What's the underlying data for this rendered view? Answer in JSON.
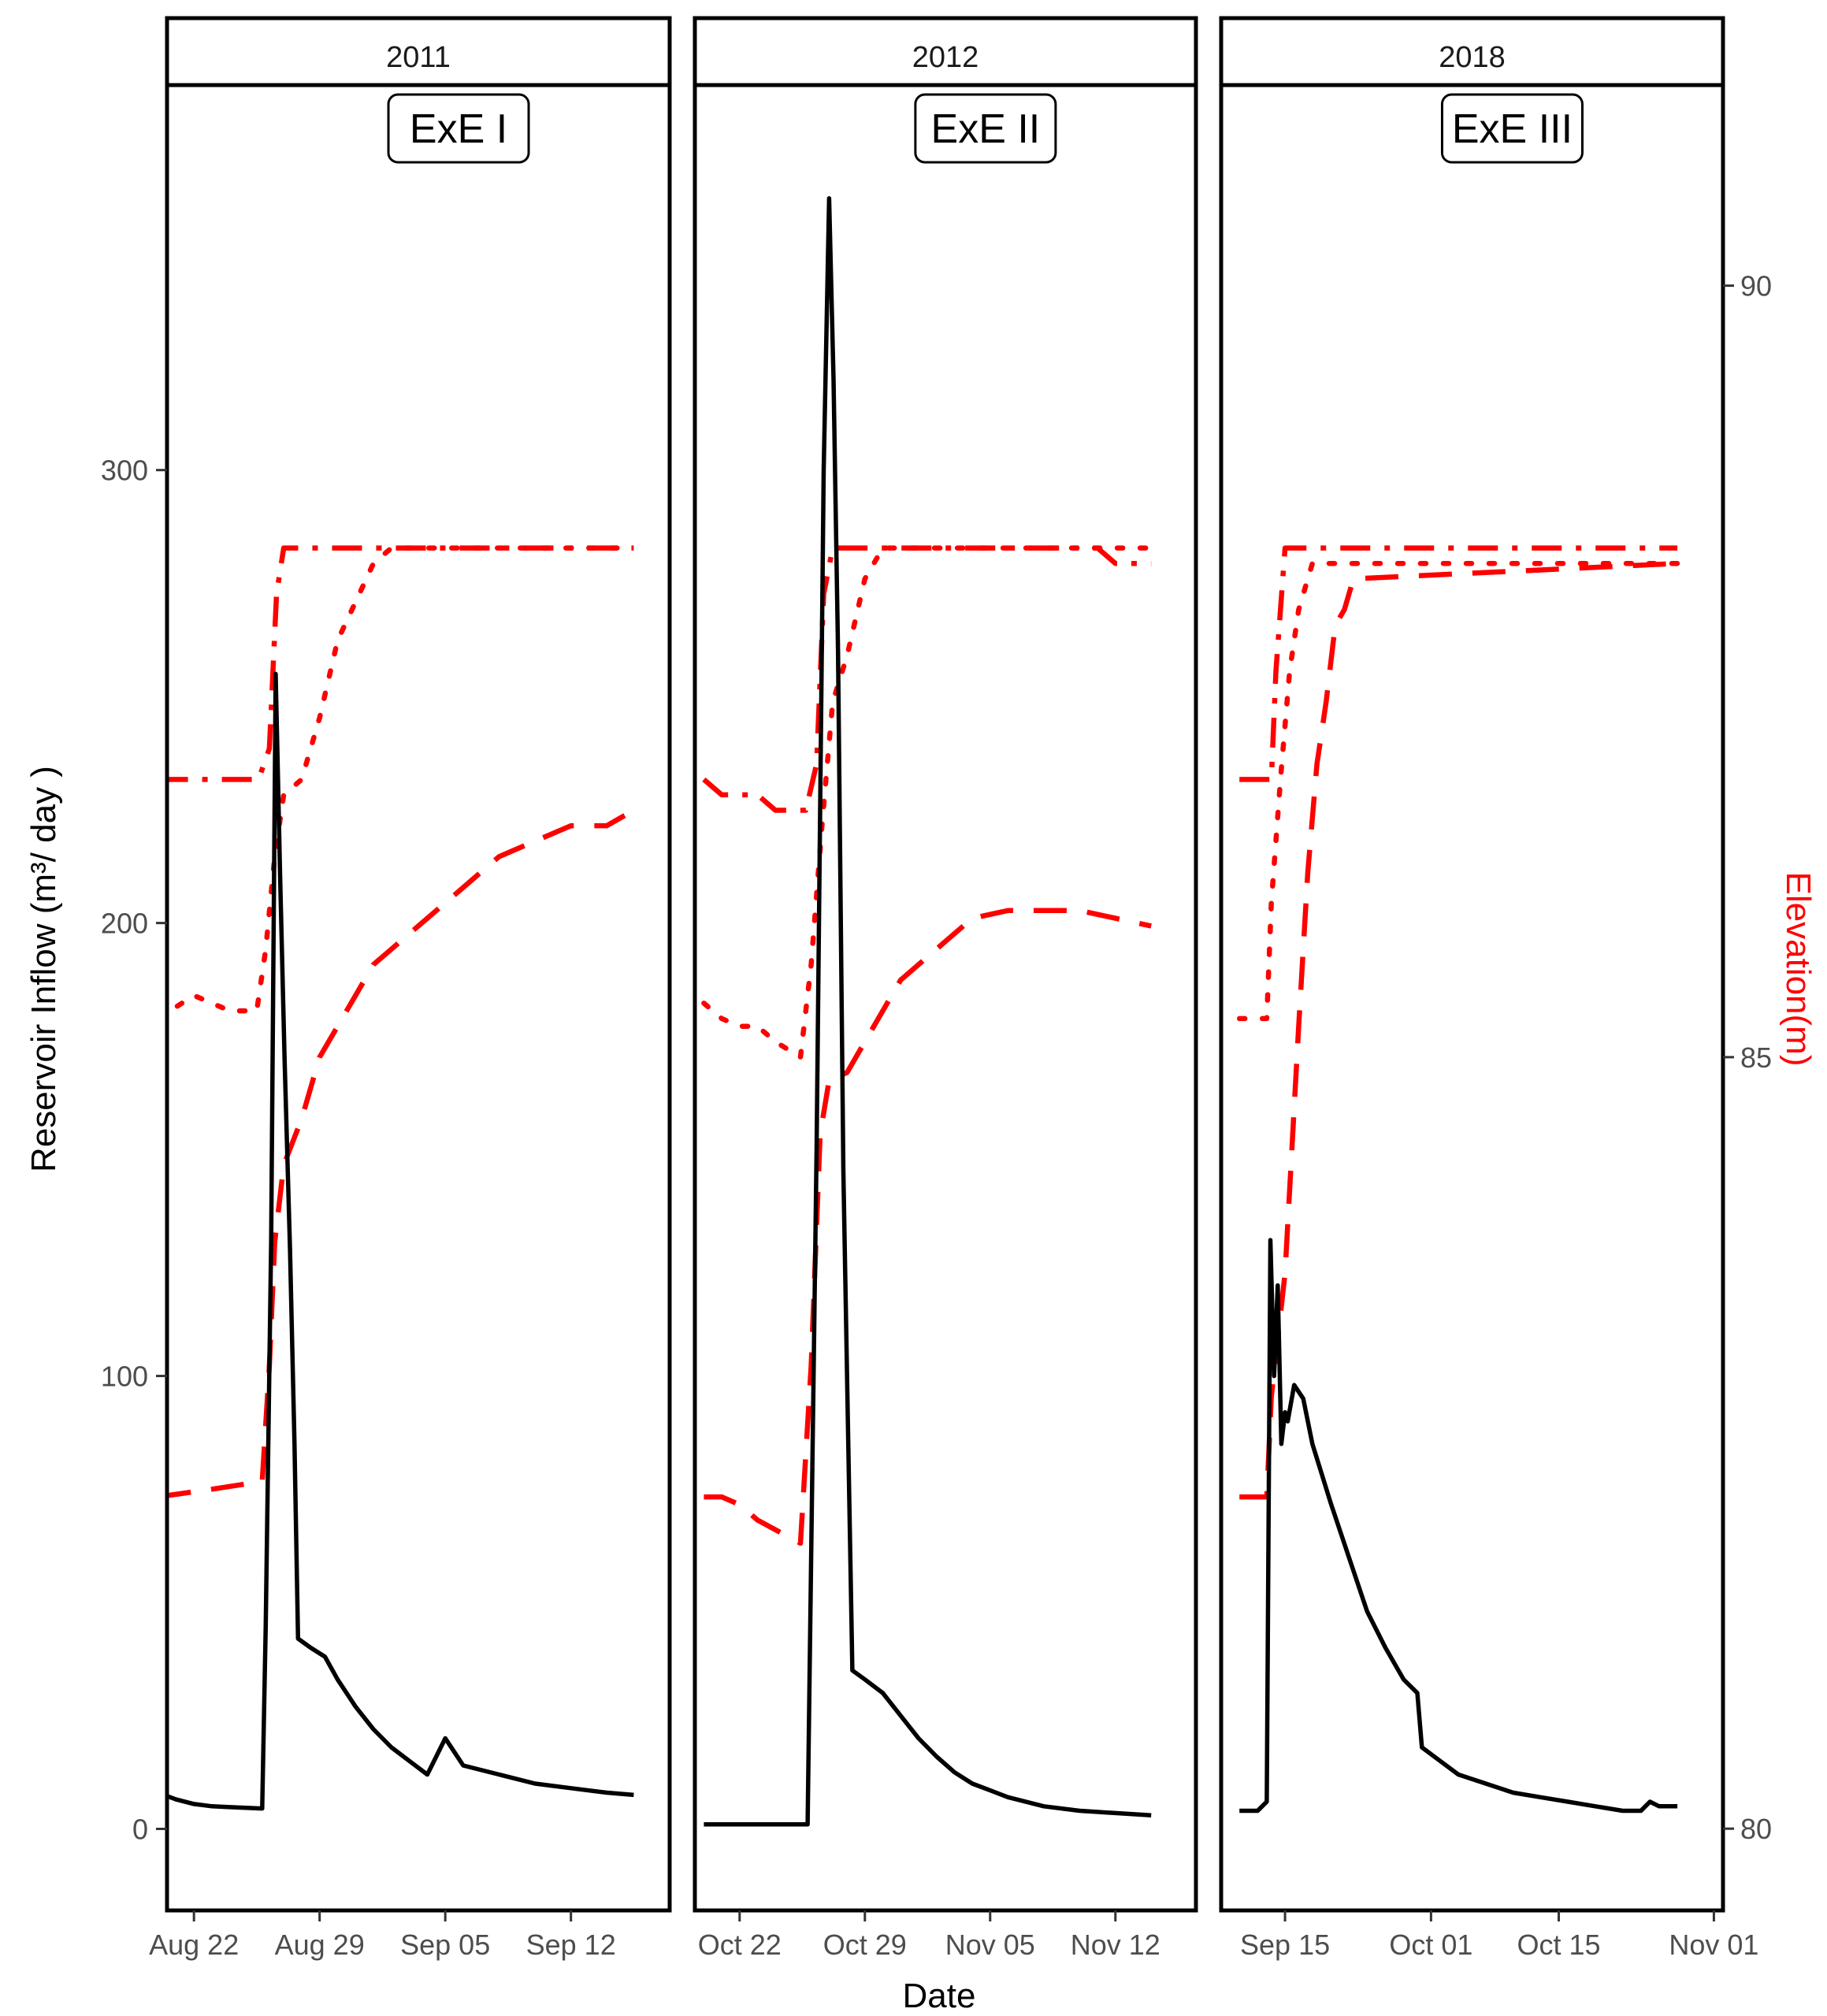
{
  "chart_data": {
    "type": "line",
    "xlabel": "Date",
    "ylabel_left": "Reservoir Inflow (m³/ day )",
    "ylabel_right": "Elevation(m)",
    "ylim_left": [
      -18,
      385
    ],
    "ylim_right": [
      79.47,
      91.3
    ],
    "yticks_left": [
      0,
      100,
      200,
      300
    ],
    "yticks_right": [
      80,
      85,
      90
    ],
    "colors": {
      "inflow": "#000000",
      "elevation": "#ff0000"
    },
    "panels": [
      {
        "strip": "2011",
        "badge": "ExE I",
        "xlim": [
          -1.5,
          26.5
        ],
        "xticks": [
          {
            "v": 0,
            "label": "Aug 22"
          },
          {
            "v": 7,
            "label": "Aug 29"
          },
          {
            "v": 14,
            "label": "Sep 05"
          },
          {
            "v": 21,
            "label": "Sep 12"
          }
        ],
        "series": [
          {
            "name": "inflow",
            "style": "solid",
            "axis": "left",
            "points": [
              [
                -2,
                8
              ],
              [
                -1,
                6.5
              ],
              [
                0,
                5.5
              ],
              [
                1,
                5
              ],
              [
                2,
                4.8
              ],
              [
                3.8,
                4.5
              ],
              [
                4,
                45
              ],
              [
                4.3,
                130
              ],
              [
                4.55,
                255
              ],
              [
                4.8,
                210
              ],
              [
                5.05,
                170
              ],
              [
                5.35,
                128
              ],
              [
                5.6,
                85
              ],
              [
                5.8,
                42
              ],
              [
                6.5,
                40
              ],
              [
                7.3,
                38
              ],
              [
                8,
                33
              ],
              [
                9,
                27
              ],
              [
                10,
                22
              ],
              [
                11,
                18
              ],
              [
                12,
                15
              ],
              [
                13,
                12
              ],
              [
                13.5,
                16
              ],
              [
                14,
                20
              ],
              [
                14.5,
                17
              ],
              [
                15,
                14
              ],
              [
                17,
                12
              ],
              [
                19,
                10
              ],
              [
                21,
                9
              ],
              [
                23,
                8
              ],
              [
                24.5,
                7.5
              ]
            ]
          },
          {
            "name": "elevation-dashdot",
            "style": "dashdot",
            "axis": "right",
            "points": [
              [
                -2,
                86.8
              ],
              [
                3.6,
                86.8
              ],
              [
                4.2,
                87.0
              ],
              [
                4.6,
                88.0
              ],
              [
                5,
                88.3
              ],
              [
                10,
                88.3
              ],
              [
                24.5,
                88.3
              ]
            ]
          },
          {
            "name": "elevation-dotted",
            "style": "dotted",
            "axis": "right",
            "points": [
              [
                -2,
                85.25
              ],
              [
                0,
                85.4
              ],
              [
                1,
                85.35
              ],
              [
                2,
                85.3
              ],
              [
                3.5,
                85.3
              ],
              [
                4,
                85.7
              ],
              [
                4.5,
                86.3
              ],
              [
                5,
                86.7
              ],
              [
                6,
                86.8
              ],
              [
                7,
                87.2
              ],
              [
                8,
                87.7
              ],
              [
                9,
                87.95
              ],
              [
                10,
                88.2
              ],
              [
                11,
                88.3
              ],
              [
                24.5,
                88.3
              ]
            ]
          },
          {
            "name": "elevation-dashed",
            "style": "dashed",
            "axis": "right",
            "points": [
              [
                -2,
                82.15
              ],
              [
                1,
                82.2
              ],
              [
                3.8,
                82.25
              ],
              [
                4.2,
                83
              ],
              [
                4.5,
                83.8
              ],
              [
                5,
                84.3
              ],
              [
                6,
                84.6
              ],
              [
                7,
                85
              ],
              [
                8,
                85.2
              ],
              [
                9,
                85.4
              ],
              [
                10,
                85.6
              ],
              [
                11,
                85.7
              ],
              [
                13,
                85.9
              ],
              [
                15,
                86.1
              ],
              [
                17,
                86.3
              ],
              [
                19,
                86.4
              ],
              [
                21,
                86.5
              ],
              [
                23,
                86.5
              ],
              [
                24.5,
                86.6
              ]
            ]
          }
        ]
      },
      {
        "strip": "2012",
        "badge": "ExE II",
        "xlim": [
          -2.5,
          25.5
        ],
        "xticks": [
          {
            "v": 0,
            "label": "Oct 22"
          },
          {
            "v": 7,
            "label": "Oct 29"
          },
          {
            "v": 14,
            "label": "Nov 05"
          },
          {
            "v": 21,
            "label": "Nov 12"
          }
        ],
        "series": [
          {
            "name": "inflow",
            "style": "solid",
            "axis": "left",
            "points": [
              [
                -2,
                1
              ],
              [
                3.8,
                1
              ],
              [
                4,
                60
              ],
              [
                4.3,
                150
              ],
              [
                4.7,
                300
              ],
              [
                5.0,
                360
              ],
              [
                5.25,
                320
              ],
              [
                5.5,
                260
              ],
              [
                5.8,
                145
              ],
              [
                6.05,
                90
              ],
              [
                6.3,
                35
              ],
              [
                7,
                33
              ],
              [
                8,
                30
              ],
              [
                9,
                25
              ],
              [
                10,
                20
              ],
              [
                11,
                16
              ],
              [
                12,
                12.5
              ],
              [
                13,
                10
              ],
              [
                14,
                8.5
              ],
              [
                15,
                7
              ],
              [
                17,
                5
              ],
              [
                19,
                4
              ],
              [
                21,
                3.5
              ],
              [
                23,
                3
              ]
            ]
          },
          {
            "name": "elevation-dashdot",
            "style": "dashdot",
            "axis": "right",
            "points": [
              [
                -2,
                86.8
              ],
              [
                -1,
                86.7
              ],
              [
                1,
                86.7
              ],
              [
                2,
                86.6
              ],
              [
                3.7,
                86.6
              ],
              [
                4.3,
                86.9
              ],
              [
                4.7,
                88.0
              ],
              [
                5.2,
                88.3
              ],
              [
                7,
                88.3
              ],
              [
                20,
                88.3
              ],
              [
                21,
                88.2
              ],
              [
                23,
                88.2
              ]
            ]
          },
          {
            "name": "elevation-dotted",
            "style": "dotted",
            "axis": "right",
            "points": [
              [
                -2,
                85.35
              ],
              [
                -1,
                85.25
              ],
              [
                0,
                85.2
              ],
              [
                1,
                85.2
              ],
              [
                2,
                85.1
              ],
              [
                3.4,
                85.0
              ],
              [
                4,
                85.6
              ],
              [
                4.6,
                86.5
              ],
              [
                5.2,
                87.3
              ],
              [
                6,
                87.6
              ],
              [
                7,
                88.1
              ],
              [
                8,
                88.3
              ],
              [
                23,
                88.3
              ]
            ]
          },
          {
            "name": "elevation-dashed",
            "style": "dashed",
            "axis": "right",
            "points": [
              [
                -2,
                82.15
              ],
              [
                -1,
                82.15
              ],
              [
                0,
                82.1
              ],
              [
                1,
                82.0
              ],
              [
                3.4,
                81.85
              ],
              [
                4,
                83.0
              ],
              [
                4.5,
                84.5
              ],
              [
                5,
                84.85
              ],
              [
                6,
                84.9
              ],
              [
                7,
                85.1
              ],
              [
                8,
                85.3
              ],
              [
                9,
                85.5
              ],
              [
                11,
                85.7
              ],
              [
                13,
                85.9
              ],
              [
                15,
                85.95
              ],
              [
                17,
                85.95
              ],
              [
                19,
                85.95
              ],
              [
                21,
                85.9
              ],
              [
                23,
                85.85
              ]
            ]
          }
        ]
      },
      {
        "strip": "2018",
        "badge": "ExE III",
        "xlim": [
          -7,
          48
        ],
        "xticks": [
          {
            "v": 0,
            "label": "Sep 15"
          },
          {
            "v": 16,
            "label": "Oct 01"
          },
          {
            "v": 30,
            "label": "Oct 15"
          },
          {
            "v": 47,
            "label": "Nov 01"
          }
        ],
        "series": [
          {
            "name": "inflow",
            "style": "solid",
            "axis": "left",
            "points": [
              [
                -5,
                4
              ],
              [
                -3,
                4
              ],
              [
                -2,
                6
              ],
              [
                -1.6,
                130
              ],
              [
                -1.2,
                100
              ],
              [
                -0.8,
                120
              ],
              [
                -0.4,
                85
              ],
              [
                0,
                92
              ],
              [
                0.3,
                90
              ],
              [
                1,
                98
              ],
              [
                2,
                95
              ],
              [
                3,
                85
              ],
              [
                5,
                72
              ],
              [
                7,
                60
              ],
              [
                9,
                48
              ],
              [
                11,
                40
              ],
              [
                13,
                33
              ],
              [
                14.5,
                30
              ],
              [
                15,
                18
              ],
              [
                17,
                15
              ],
              [
                19,
                12
              ],
              [
                22,
                10
              ],
              [
                25,
                8
              ],
              [
                28,
                7
              ],
              [
                31,
                6
              ],
              [
                34,
                5
              ],
              [
                37,
                4
              ],
              [
                39,
                4
              ],
              [
                40,
                6
              ],
              [
                41,
                5
              ],
              [
                43,
                5
              ]
            ]
          },
          {
            "name": "elevation-dashdot",
            "style": "dashdot",
            "axis": "right",
            "points": [
              [
                -5,
                86.8
              ],
              [
                -1.5,
                86.8
              ],
              [
                -1,
                87.5
              ],
              [
                0,
                88.3
              ],
              [
                10,
                88.3
              ],
              [
                43,
                88.3
              ]
            ]
          },
          {
            "name": "elevation-dotted",
            "style": "dotted",
            "axis": "right",
            "points": [
              [
                -5,
                85.25
              ],
              [
                -2,
                85.25
              ],
              [
                -1.5,
                86.0
              ],
              [
                -0.5,
                86.8
              ],
              [
                0.5,
                87.5
              ],
              [
                1.5,
                87.9
              ],
              [
                2,
                88.0
              ],
              [
                3,
                88.2
              ],
              [
                43,
                88.2
              ]
            ]
          },
          {
            "name": "elevation-dashed",
            "style": "dashed",
            "axis": "right",
            "points": [
              [
                -5,
                82.15
              ],
              [
                -2,
                82.15
              ],
              [
                -1.5,
                82.8
              ],
              [
                0,
                83.6
              ],
              [
                1.5,
                85.2
              ],
              [
                2.5,
                86.2
              ],
              [
                3.5,
                86.9
              ],
              [
                4.5,
                87.3
              ],
              [
                5.5,
                87.8
              ],
              [
                6.5,
                87.9
              ],
              [
                7.5,
                88.1
              ],
              [
                43,
                88.2
              ]
            ]
          }
        ]
      }
    ]
  }
}
